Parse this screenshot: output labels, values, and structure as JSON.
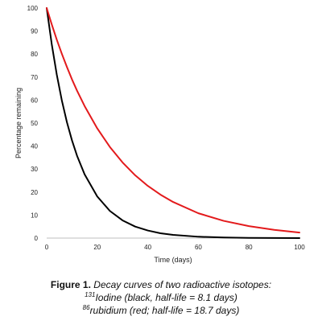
{
  "chart_data": {
    "type": "line",
    "xlabel": "Time (days)",
    "ylabel": "Percentage remaining",
    "xlim": [
      0,
      100
    ],
    "ylim": [
      0,
      100
    ],
    "x_ticks": [
      0,
      20,
      40,
      60,
      80,
      100
    ],
    "y_ticks": [
      0,
      10,
      20,
      30,
      40,
      50,
      60,
      70,
      80,
      90,
      100
    ],
    "grid": false,
    "x": [
      0,
      2,
      4,
      6,
      8,
      10,
      12,
      15,
      20,
      25,
      30,
      35,
      40,
      45,
      50,
      60,
      70,
      80,
      90,
      100
    ],
    "series": [
      {
        "color": "#000000",
        "half_life_days": 8.1,
        "values": [
          100,
          84.3,
          71.0,
          59.8,
          50.4,
          42.5,
          35.8,
          27.7,
          18.1,
          11.8,
          7.7,
          5.0,
          3.3,
          2.1,
          1.4,
          0.59,
          0.25,
          0.11,
          0.05,
          0.02
        ]
      },
      {
        "color": "#e31a1c",
        "half_life_days": 18.7,
        "values": [
          100,
          92.9,
          86.2,
          80.1,
          74.4,
          69.0,
          64.1,
          57.4,
          47.7,
          39.6,
          32.9,
          27.3,
          22.7,
          18.9,
          15.7,
          10.8,
          7.5,
          5.2,
          3.6,
          2.4
        ]
      }
    ]
  },
  "caption": {
    "figure_label": "Figure 1.",
    "title": "Decay curves of two radioactive isotopes:",
    "line2_sup": "131",
    "line2_text": "Iodine (black, half-life = 8.1 days)",
    "line3_sup": "86",
    "line3_text": "rubidium (red; half-life = 18.7 days)"
  }
}
